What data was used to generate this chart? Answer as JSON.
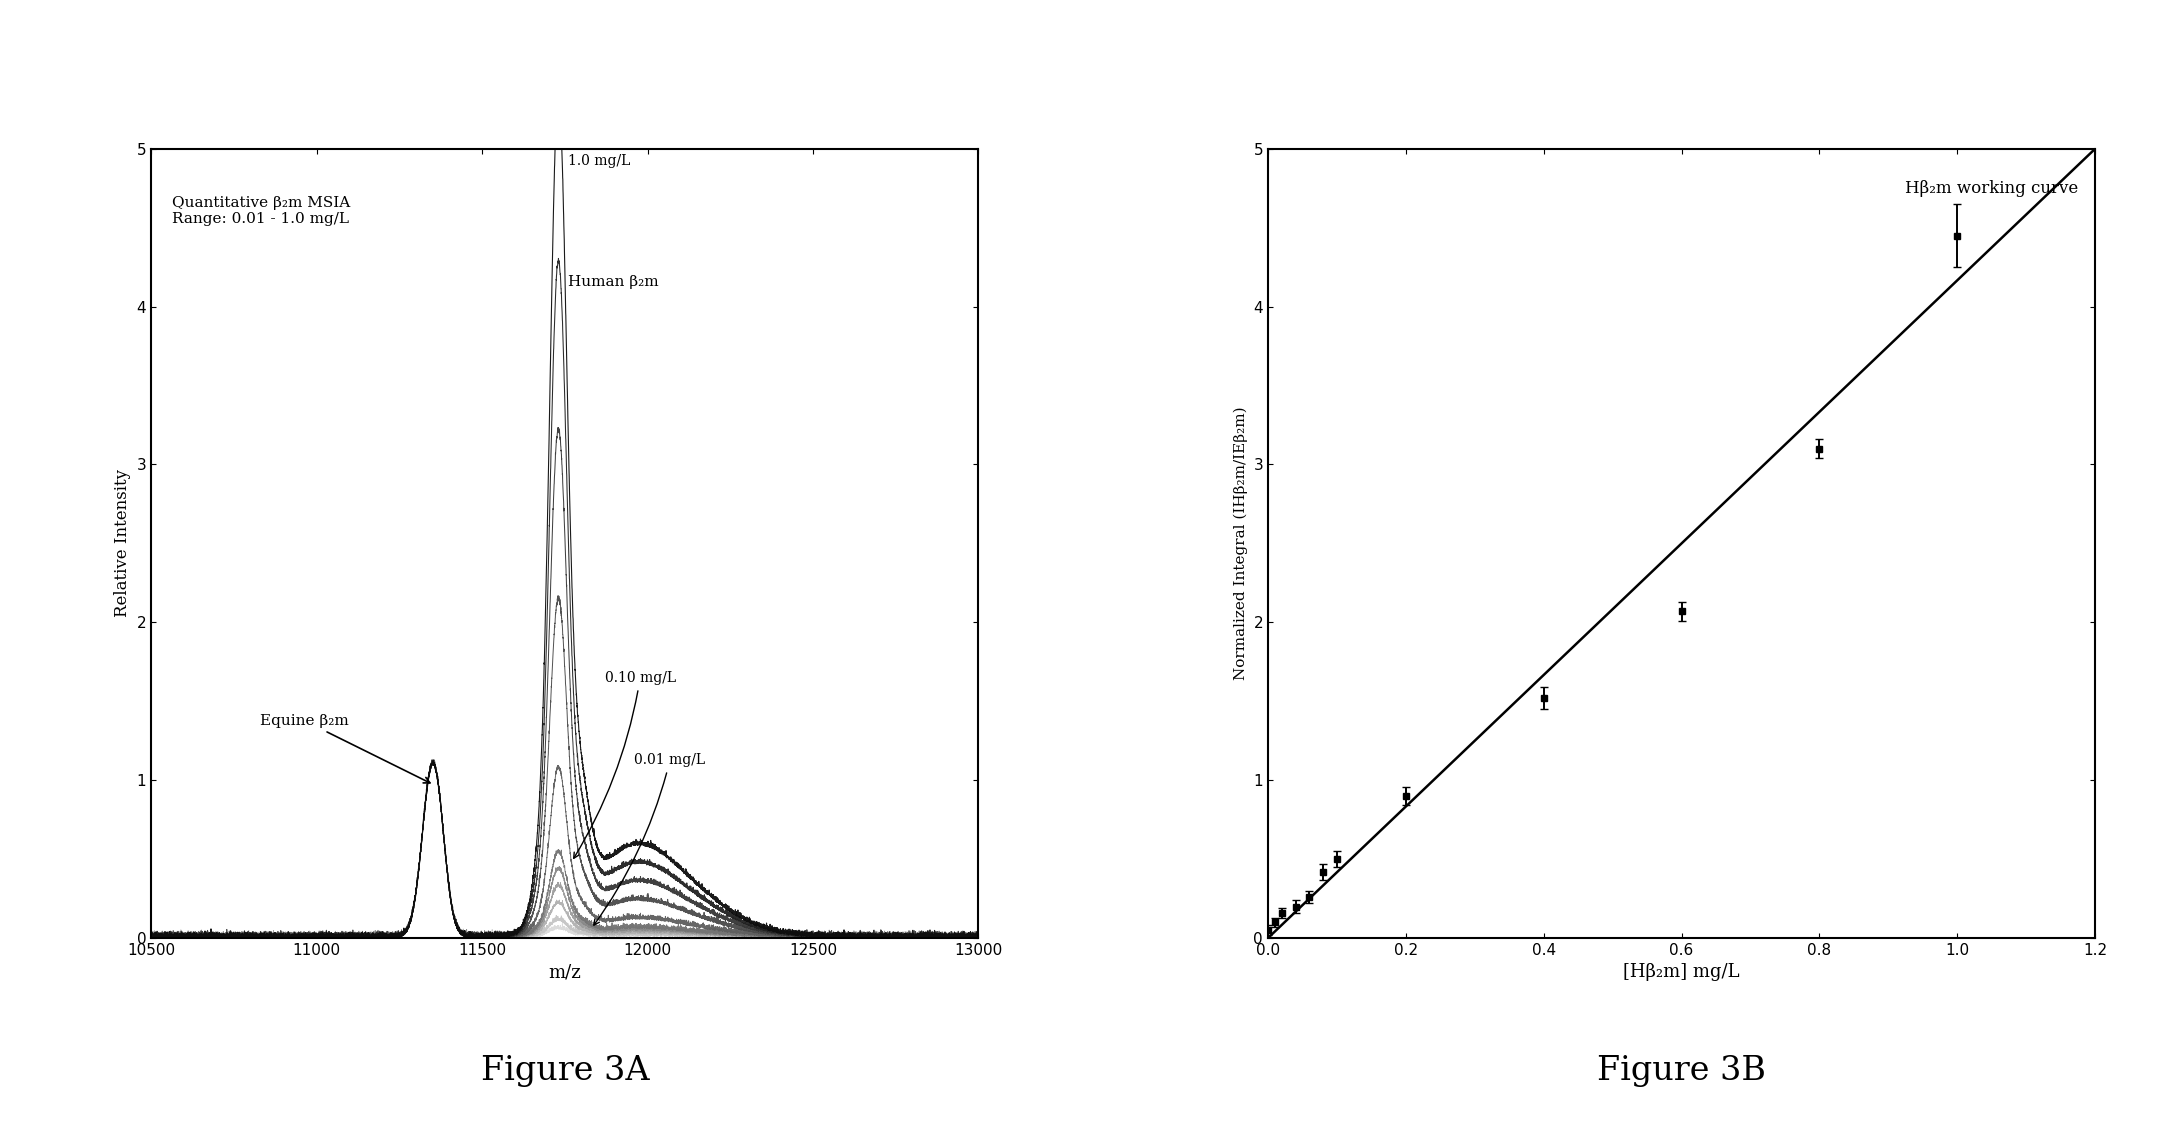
{
  "fig3A": {
    "annotation_text": "Quantitative β₂m MSIA\nRange: 0.01 - 1.0 mg/L",
    "xlabel": "m/z",
    "ylabel": "Relative Intensity",
    "xlim": [
      10500,
      13000
    ],
    "ylim": [
      0,
      5
    ],
    "xticks": [
      10500,
      11000,
      11500,
      12000,
      12500,
      13000
    ],
    "yticks": [
      0,
      1,
      2,
      3,
      4,
      5
    ],
    "equine_peak_mz": 11350,
    "equine_peak_sigma": 30,
    "equine_peak_amp": 0.95,
    "human_peak_mz": 11730,
    "human_peak_sigma": 25,
    "equine_label": "Equine β₂m",
    "human_label": "Human β₂m",
    "label_1mg": "1.0 mg/L",
    "label_010mg": "0.10 mg/L",
    "label_001mg": "0.01 mg/L",
    "concentrations": [
      0.01,
      0.02,
      0.04,
      0.06,
      0.08,
      0.1,
      0.2,
      0.4,
      0.6,
      0.8,
      1.0
    ]
  },
  "fig3B": {
    "title_text": "Hβ₂m working curve",
    "xlabel": "[Hβ₂m] mg/L",
    "ylabel": "Normalized Integral (IHβ₂m/IEβ₂m)",
    "xlim": [
      0,
      1.2
    ],
    "ylim": [
      0,
      5
    ],
    "xticks": [
      0.0,
      0.2,
      0.4,
      0.6,
      0.8,
      1.0,
      1.2
    ],
    "yticks": [
      0,
      1,
      2,
      3,
      4,
      5
    ],
    "data_x": [
      0.0,
      0.01,
      0.02,
      0.04,
      0.06,
      0.08,
      0.1,
      0.2,
      0.4,
      0.6,
      0.8,
      1.0
    ],
    "data_y": [
      0.05,
      0.1,
      0.16,
      0.2,
      0.26,
      0.42,
      0.5,
      0.9,
      1.52,
      2.07,
      3.1,
      4.45
    ],
    "data_yerr": [
      0.03,
      0.03,
      0.03,
      0.04,
      0.04,
      0.05,
      0.05,
      0.06,
      0.07,
      0.06,
      0.06,
      0.2
    ],
    "line_x0": 0.0,
    "line_x1": 1.2,
    "line_y0": 0.0,
    "line_y1": 5.0
  },
  "figure_label_A": "Figure 3A",
  "figure_label_B": "Figure 3B",
  "bg_color": "#ffffff"
}
